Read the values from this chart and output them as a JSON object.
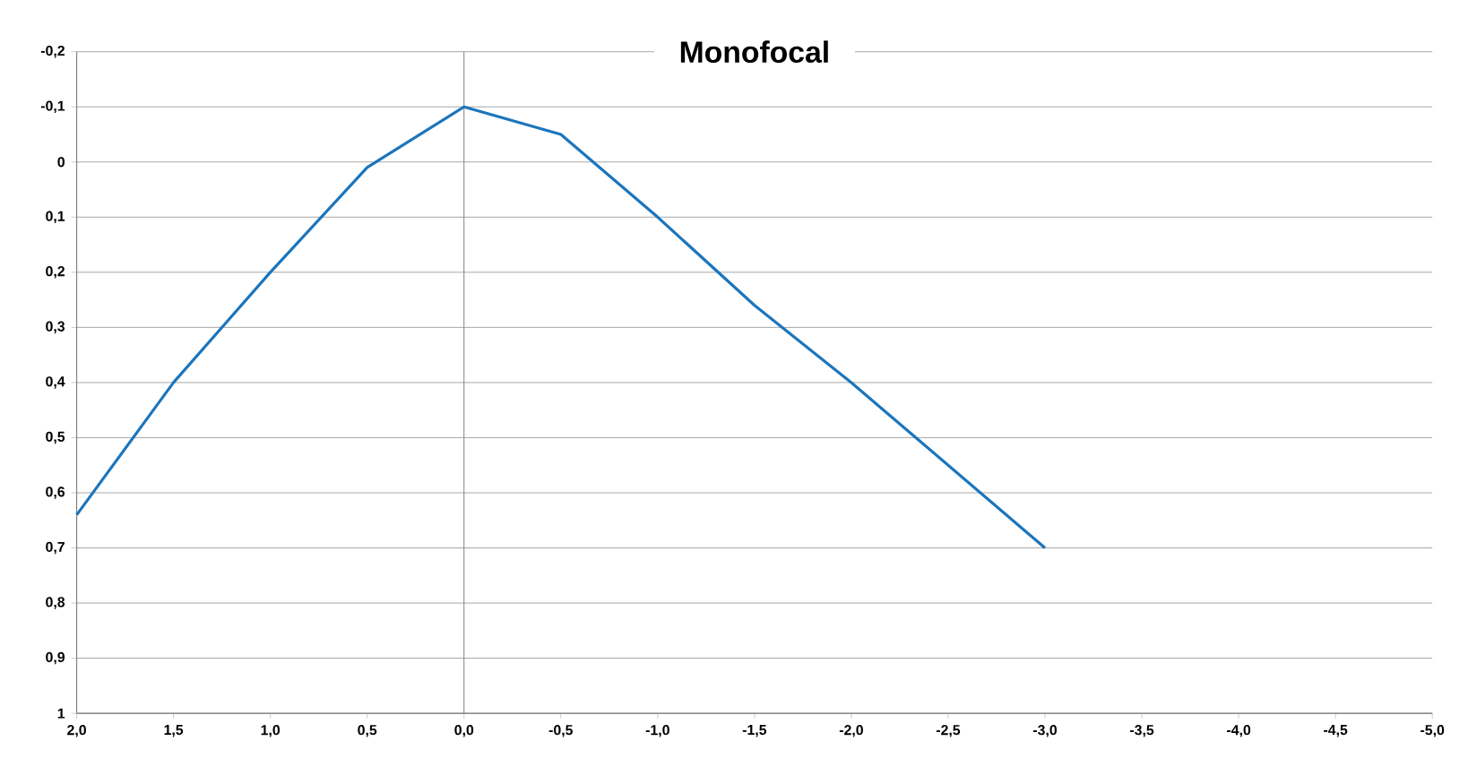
{
  "chart_data": {
    "type": "line",
    "title": "Monofocal",
    "x": [
      2.0,
      1.5,
      1.0,
      0.5,
      0.0,
      -0.5,
      -1.0,
      -1.5,
      -2.0,
      -3.0
    ],
    "series": [
      {
        "color": "#1b75bc",
        "values": [
          0.64,
          0.4,
          0.2,
          0.01,
          -0.1,
          -0.05,
          0.1,
          0.26,
          0.4,
          0.7
        ]
      }
    ],
    "xlim": [
      2.0,
      -5.0
    ],
    "ylim": [
      1,
      -0.2
    ],
    "xticks": [
      {
        "value": 2.0,
        "label": "2,0"
      },
      {
        "value": 1.5,
        "label": "1,5"
      },
      {
        "value": 1.0,
        "label": "1,0"
      },
      {
        "value": 0.5,
        "label": "0,5"
      },
      {
        "value": 0.0,
        "label": "0,0"
      },
      {
        "value": -0.5,
        "label": "-0,5"
      },
      {
        "value": -1.0,
        "label": "-1,0"
      },
      {
        "value": -1.5,
        "label": "-1,5"
      },
      {
        "value": -2.0,
        "label": "-2,0"
      },
      {
        "value": -2.5,
        "label": "-2,5"
      },
      {
        "value": -3.0,
        "label": "-3,0"
      },
      {
        "value": -3.5,
        "label": "-3,5"
      },
      {
        "value": -4.0,
        "label": "-4,0"
      },
      {
        "value": -4.5,
        "label": "-4,5"
      },
      {
        "value": -5.0,
        "label": "-5,0"
      }
    ],
    "yticks": [
      {
        "value": -0.2,
        "label": "-0,2"
      },
      {
        "value": -0.1,
        "label": "-0,1"
      },
      0,
      {
        "value": 0.1,
        "label": "0,1"
      },
      {
        "value": 0.2,
        "label": "0,2"
      },
      {
        "value": 0.3,
        "label": "0,3"
      },
      {
        "value": 0.4,
        "label": "0,4"
      },
      {
        "value": 0.5,
        "label": "0,5"
      },
      {
        "value": 0.6,
        "label": "0,6"
      },
      {
        "value": 0.7,
        "label": "0,7"
      },
      {
        "value": 0.8,
        "label": "0,8"
      },
      {
        "value": 0.9,
        "label": "0,9"
      },
      1
    ],
    "grid": "y",
    "marker": "none",
    "line_style": "solid",
    "ref_lines": [
      {
        "axis": "x",
        "value": 0,
        "color": "#808080"
      }
    ]
  }
}
